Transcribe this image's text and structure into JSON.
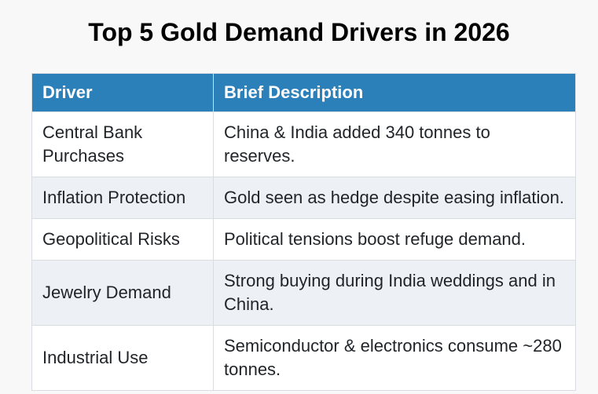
{
  "page": {
    "background_color": "#f8f8f8"
  },
  "title": "Top 5 Gold Demand Drivers in 2026",
  "colors": {
    "header_bg": "#2c80b9",
    "header_text": "#ffffff",
    "stripe_row_bg": "#edf1f6",
    "row_bg": "#ffffff",
    "border": "#d9dde1",
    "title_text": "#000000",
    "body_text": "#212529"
  },
  "chart_data": {
    "type": "table",
    "title": "Top 5 Gold Demand Drivers in 2026",
    "columns": [
      "Driver",
      "Brief Description"
    ],
    "rows": [
      [
        "Central Bank Purchases",
        "China & India added 340 tonnes to reserves."
      ],
      [
        "Inflation Protection",
        "Gold seen as hedge despite easing inflation."
      ],
      [
        "Geopolitical Risks",
        "Political tensions boost refuge demand."
      ],
      [
        "Jewelry Demand",
        "Strong buying during India weddings and in China."
      ],
      [
        "Industrial Use",
        "Semiconductor & electronics consume ~280 tonnes."
      ]
    ],
    "layout": {
      "striped_row_indices": [
        1,
        3
      ],
      "header_position": "top",
      "grid": true
    }
  }
}
